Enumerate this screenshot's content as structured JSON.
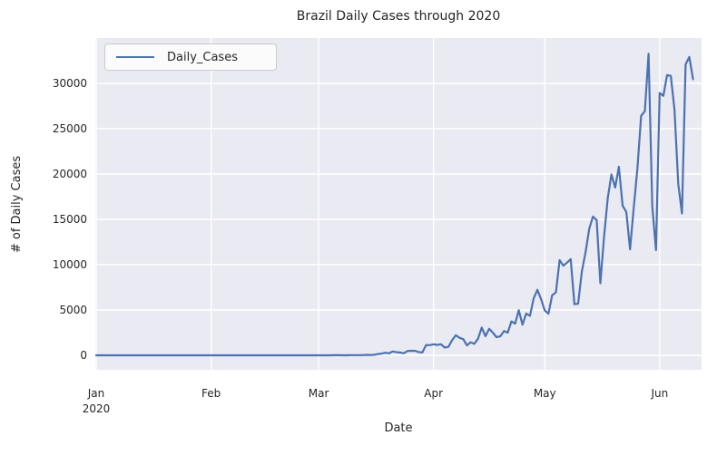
{
  "colors": {
    "line": "#4C72B0",
    "axes_background": "#EAEAF2",
    "grid": "#FFFFFF",
    "text": "#262626",
    "legend_background": "#FBFBFC",
    "legend_border": "#CCCCCC"
  },
  "chart_data": {
    "type": "line",
    "title": "Brazil Daily Cases through 2020",
    "xlabel": "Date",
    "ylabel": "# of Daily Cases",
    "legend_position": "upper left",
    "grid": true,
    "x_start_date": "2020-01-01",
    "x_frequency": "daily",
    "xlim_days": [
      -0.25,
      163.3
    ],
    "ylim": [
      -1600,
      35000
    ],
    "y_ticks": [
      0,
      5000,
      10000,
      15000,
      20000,
      25000,
      30000
    ],
    "x_ticks": [
      {
        "day": 0,
        "label": "Jan",
        "sub": "2020"
      },
      {
        "day": 31,
        "label": "Feb",
        "sub": ""
      },
      {
        "day": 60,
        "label": "Mar",
        "sub": ""
      },
      {
        "day": 91,
        "label": "Apr",
        "sub": ""
      },
      {
        "day": 121,
        "label": "May",
        "sub": ""
      },
      {
        "day": 152,
        "label": "Jun",
        "sub": ""
      }
    ],
    "series": [
      {
        "name": "Daily_Cases",
        "color": "#4C72B0",
        "values": [
          0,
          0,
          0,
          0,
          0,
          0,
          0,
          0,
          0,
          0,
          0,
          0,
          0,
          0,
          0,
          0,
          0,
          0,
          0,
          0,
          0,
          0,
          0,
          0,
          0,
          0,
          0,
          0,
          0,
          0,
          0,
          0,
          0,
          0,
          0,
          0,
          0,
          0,
          0,
          0,
          0,
          0,
          0,
          0,
          0,
          0,
          0,
          0,
          0,
          0,
          0,
          0,
          0,
          0,
          0,
          1,
          0,
          0,
          1,
          0,
          0,
          0,
          1,
          1,
          9,
          6,
          6,
          0,
          9,
          18,
          25,
          21,
          23,
          49,
          34,
          57,
          137,
          193,
          283,
          224,
          418,
          345,
          310,
          232,
          482,
          502,
          487,
          352,
          323,
          1138,
          1119,
          1208,
          1146,
          1222,
          852,
          926,
          1661,
          2210,
          1930,
          1781,
          1089,
          1442,
          1261,
          1832,
          3058,
          2105,
          2917,
          2499,
          1997,
          2089,
          2678,
          2498,
          3735,
          3503,
          4970,
          3379,
          4613,
          4348,
          6276,
          7218,
          6209,
          4960,
          4588,
          6633,
          6935,
          10503,
          9888,
          10222,
          10611,
          5632,
          5696,
          9258,
          11385,
          13944,
          15305,
          14919,
          7938,
          13140,
          17408,
          19951,
          18508,
          20803,
          16508,
          15813,
          11687,
          16324,
          20599,
          26417,
          26928,
          33274,
          16409,
          11598,
          28936,
          28633,
          30925,
          30830,
          27075,
          18912,
          15654,
          32091,
          32913,
          30465
        ]
      }
    ]
  }
}
